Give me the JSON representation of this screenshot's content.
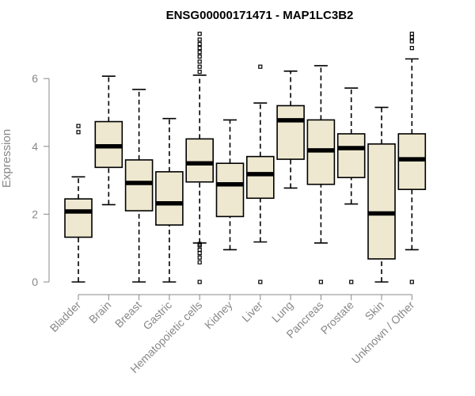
{
  "chart_data": {
    "type": "boxplot",
    "title": "ENSG00000171471 - MAP1LC3B2",
    "xlabel": "",
    "ylabel": "Expression",
    "ylim": [
      0,
      7.4
    ],
    "yticks": [
      0,
      2,
      4,
      6
    ],
    "box_color": "#EEE8D0",
    "categories": [
      "Bladder",
      "Brain",
      "Breast",
      "Gastric",
      "Hematopoietic cells",
      "Kidney",
      "Liver",
      "Lung",
      "Pancreas",
      "Prostate",
      "Skin",
      "Unknown / Other"
    ],
    "boxes": [
      {
        "name": "Bladder",
        "whisker_low": 0.0,
        "q1": 1.32,
        "median": 2.08,
        "q3": 2.45,
        "whisker_high": 3.1,
        "outliers": [
          4.42,
          4.6
        ]
      },
      {
        "name": "Brain",
        "whisker_low": 2.28,
        "q1": 3.38,
        "median": 4.0,
        "q3": 4.73,
        "whisker_high": 6.07,
        "outliers": []
      },
      {
        "name": "Breast",
        "whisker_low": 0.0,
        "q1": 2.1,
        "median": 2.92,
        "q3": 3.6,
        "whisker_high": 5.68,
        "outliers": []
      },
      {
        "name": "Gastric",
        "whisker_low": 0.0,
        "q1": 1.68,
        "median": 2.32,
        "q3": 3.25,
        "whisker_high": 4.82,
        "outliers": []
      },
      {
        "name": "Hematopoietic cells",
        "whisker_low": 1.15,
        "q1": 2.95,
        "median": 3.5,
        "q3": 4.22,
        "whisker_high": 6.1,
        "outliers": [
          0.0,
          0.58,
          0.72,
          0.85,
          0.95,
          1.08,
          1.12,
          6.2,
          6.35,
          6.5,
          6.65,
          6.78,
          6.9,
          7.02,
          7.15,
          7.32
        ]
      },
      {
        "name": "Kidney",
        "whisker_low": 0.95,
        "q1": 1.93,
        "median": 2.88,
        "q3": 3.5,
        "whisker_high": 4.78,
        "outliers": []
      },
      {
        "name": "Liver",
        "whisker_low": 1.18,
        "q1": 2.47,
        "median": 3.18,
        "q3": 3.7,
        "whisker_high": 5.28,
        "outliers": [
          0.0,
          6.35
        ]
      },
      {
        "name": "Lung",
        "whisker_low": 2.77,
        "q1": 3.62,
        "median": 4.77,
        "q3": 5.2,
        "whisker_high": 6.22,
        "outliers": []
      },
      {
        "name": "Pancreas",
        "whisker_low": 1.15,
        "q1": 2.88,
        "median": 3.88,
        "q3": 4.78,
        "whisker_high": 6.38,
        "outliers": [
          0.0
        ]
      },
      {
        "name": "Prostate",
        "whisker_low": 2.3,
        "q1": 3.08,
        "median": 3.95,
        "q3": 4.37,
        "whisker_high": 5.72,
        "outliers": [
          0.0
        ]
      },
      {
        "name": "Skin",
        "whisker_low": 0.0,
        "q1": 0.68,
        "median": 2.02,
        "q3": 4.07,
        "whisker_high": 5.15,
        "outliers": []
      },
      {
        "name": "Unknown / Other",
        "whisker_low": 0.95,
        "q1": 2.73,
        "median": 3.62,
        "q3": 4.37,
        "whisker_high": 6.58,
        "outliers": [
          0.0,
          6.9,
          7.1,
          7.22,
          7.32
        ]
      }
    ]
  }
}
